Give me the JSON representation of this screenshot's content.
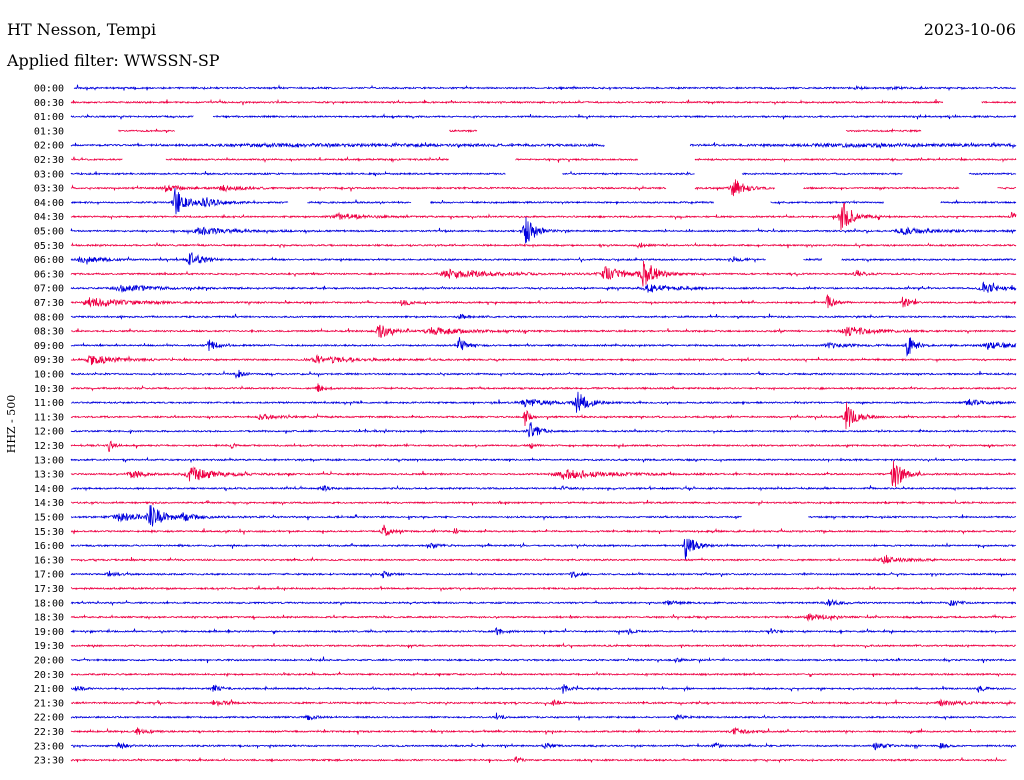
{
  "header": {
    "station": "HT Nesson, Tempi",
    "date": "2023-10-06",
    "filter": "Applied filter: WWSSN-SP"
  },
  "channel_label": "HHZ - 500",
  "colors": {
    "trace_a": "#0000dd",
    "trace_b": "#ee0044",
    "background": "#ffffff",
    "text": "#000000"
  },
  "chart_data": {
    "type": "line",
    "subtype": "helicorder",
    "title": "HT Nesson, Tempi",
    "subtitle": "Applied filter: WWSSN-SP",
    "date": "2023-10-06",
    "ylabel": "HHZ - 500",
    "xlabel": "",
    "row_minutes": 30,
    "trace_colors": [
      "#0000dd",
      "#ee0044"
    ],
    "rows": [
      {
        "label": "00:00",
        "gaps": [
          [
            0.0,
            0.003
          ]
        ],
        "events": [
          [
            0.83,
            1.2,
            0.012
          ],
          [
            0.865,
            1.3,
            0.012
          ]
        ]
      },
      {
        "label": "00:30",
        "gaps": [
          [
            0.923,
            0.963
          ]
        ],
        "events": []
      },
      {
        "label": "01:00",
        "gaps": [
          [
            0.13,
            0.15
          ]
        ],
        "events": []
      },
      {
        "label": "01:30",
        "gaps": [
          [
            0.0,
            0.05
          ],
          [
            0.11,
            0.4
          ],
          [
            0.43,
            0.82
          ],
          [
            0.9,
            1.0
          ]
        ],
        "events": []
      },
      {
        "label": "02:00",
        "gaps": [
          [
            0.565,
            0.655
          ]
        ],
        "events": [
          [
            0.2,
            1.2,
            0.35
          ],
          [
            0.8,
            1.3,
            0.25
          ]
        ]
      },
      {
        "label": "02:30",
        "gaps": [
          [
            0.055,
            0.1
          ],
          [
            0.4,
            0.47
          ],
          [
            0.6,
            0.66
          ]
        ],
        "events": []
      },
      {
        "label": "03:00",
        "gaps": [
          [
            0.46,
            0.52
          ],
          [
            0.66,
            0.71
          ],
          [
            0.88,
            0.95
          ]
        ],
        "events": [
          [
            0.68,
            2.0,
            0.006
          ]
        ]
      },
      {
        "label": "03:30",
        "gaps": [
          [
            0.63,
            0.66
          ],
          [
            0.745,
            0.775
          ],
          [
            0.94,
            0.98
          ]
        ],
        "events": [
          [
            0.7,
            11.0,
            0.013
          ],
          [
            0.1,
            3.0,
            0.02
          ],
          [
            0.16,
            3.5,
            0.02
          ]
        ]
      },
      {
        "label": "04:00",
        "gaps": [
          [
            0.23,
            0.25
          ],
          [
            0.36,
            0.38
          ],
          [
            0.68,
            0.74
          ],
          [
            0.86,
            0.92
          ]
        ],
        "events": [
          [
            0.11,
            16.0,
            0.012
          ],
          [
            0.14,
            5.0,
            0.02
          ]
        ]
      },
      {
        "label": "04:30",
        "gaps": [],
        "events": [
          [
            0.815,
            19.0,
            0.012
          ],
          [
            0.28,
            3.5,
            0.03
          ],
          [
            0.995,
            6.0,
            0.005
          ]
        ]
      },
      {
        "label": "05:00",
        "gaps": [],
        "events": [
          [
            0.48,
            17.0,
            0.012
          ],
          [
            0.135,
            3.5,
            0.04
          ],
          [
            0.88,
            3.0,
            0.04
          ]
        ]
      },
      {
        "label": "05:30",
        "gaps": [],
        "events": [
          [
            0.6,
            3.0,
            0.01
          ]
        ]
      },
      {
        "label": "06:00",
        "gaps": [
          [
            0.735,
            0.775
          ],
          [
            0.795,
            0.815
          ]
        ],
        "events": [
          [
            0.125,
            8.0,
            0.015
          ],
          [
            0.01,
            4.0,
            0.02
          ],
          [
            0.7,
            3.0,
            0.01
          ]
        ]
      },
      {
        "label": "06:30",
        "gaps": [],
        "events": [
          [
            0.605,
            16.0,
            0.013
          ],
          [
            0.565,
            7.0,
            0.025
          ],
          [
            0.4,
            4.0,
            0.06
          ],
          [
            0.83,
            4.0,
            0.01
          ]
        ]
      },
      {
        "label": "07:00",
        "gaps": [],
        "events": [
          [
            0.05,
            3.5,
            0.04
          ],
          [
            0.965,
            6.0,
            0.02
          ],
          [
            0.61,
            4.0,
            0.03
          ]
        ]
      },
      {
        "label": "07:30",
        "gaps": [],
        "events": [
          [
            0.02,
            5.5,
            0.04
          ],
          [
            0.8,
            8.0,
            0.008
          ],
          [
            0.88,
            7.0,
            0.008
          ],
          [
            0.35,
            4.0,
            0.01
          ]
        ]
      },
      {
        "label": "08:00",
        "gaps": [],
        "events": [
          [
            0.41,
            3.0,
            0.01
          ]
        ]
      },
      {
        "label": "08:30",
        "gaps": [],
        "events": [
          [
            0.325,
            11.0,
            0.01
          ],
          [
            0.38,
            4.0,
            0.04
          ],
          [
            0.82,
            5.0,
            0.03
          ]
        ]
      },
      {
        "label": "09:00",
        "gaps": [],
        "events": [
          [
            0.885,
            12.0,
            0.008
          ],
          [
            0.41,
            9.0,
            0.008
          ],
          [
            0.145,
            6.0,
            0.01
          ],
          [
            0.97,
            4.0,
            0.03
          ],
          [
            0.8,
            3.5,
            0.02
          ]
        ]
      },
      {
        "label": "09:30",
        "gaps": [],
        "events": [
          [
            0.02,
            5.0,
            0.03
          ],
          [
            0.26,
            4.0,
            0.04
          ]
        ]
      },
      {
        "label": "10:00",
        "gaps": [],
        "events": [
          [
            0.175,
            6.0,
            0.006
          ]
        ]
      },
      {
        "label": "10:30",
        "gaps": [],
        "events": [
          [
            0.26,
            6.0,
            0.006
          ]
        ]
      },
      {
        "label": "11:00",
        "gaps": [],
        "events": [
          [
            0.535,
            12.0,
            0.012
          ],
          [
            0.48,
            4.0,
            0.03
          ],
          [
            0.95,
            3.0,
            0.02
          ]
        ]
      },
      {
        "label": "11:30",
        "gaps": [],
        "events": [
          [
            0.82,
            15.0,
            0.012
          ],
          [
            0.48,
            10.0,
            0.005
          ],
          [
            0.2,
            3.0,
            0.02
          ]
        ]
      },
      {
        "label": "12:00",
        "gaps": [],
        "events": [
          [
            0.485,
            11.0,
            0.01
          ]
        ]
      },
      {
        "label": "12:30",
        "gaps": [],
        "events": [
          [
            0.04,
            6.0,
            0.006
          ],
          [
            0.485,
            5.0,
            0.004
          ],
          [
            0.17,
            4.0,
            0.003
          ]
        ]
      },
      {
        "label": "13:00",
        "gaps": [],
        "events": []
      },
      {
        "label": "13:30",
        "gaps": [],
        "events": [
          [
            0.87,
            22.0,
            0.01
          ],
          [
            0.125,
            8.0,
            0.03
          ],
          [
            0.063,
            5.0,
            0.015
          ],
          [
            0.52,
            5.0,
            0.05
          ]
        ]
      },
      {
        "label": "14:00",
        "gaps": [],
        "events": [
          [
            0.265,
            4.5,
            0.006
          ],
          [
            0.52,
            3.0,
            0.006
          ]
        ]
      },
      {
        "label": "14:30",
        "gaps": [],
        "events": []
      },
      {
        "label": "15:00",
        "gaps": [
          [
            0.71,
            0.78
          ]
        ],
        "events": [
          [
            0.084,
            13.0,
            0.013
          ],
          [
            0.05,
            4.0,
            0.04
          ],
          [
            0.117,
            4.0,
            0.015
          ]
        ]
      },
      {
        "label": "15:30",
        "gaps": [],
        "events": [
          [
            0.33,
            7.0,
            0.008
          ],
          [
            0.405,
            6.0,
            0.004
          ]
        ]
      },
      {
        "label": "16:00",
        "gaps": [],
        "events": [
          [
            0.65,
            14.0,
            0.01
          ],
          [
            0.38,
            3.0,
            0.01
          ]
        ]
      },
      {
        "label": "16:30",
        "gaps": [],
        "events": [
          [
            0.86,
            3.0,
            0.03
          ]
        ]
      },
      {
        "label": "17:00",
        "gaps": [],
        "events": [
          [
            0.53,
            4.0,
            0.008
          ],
          [
            0.33,
            3.0,
            0.008
          ],
          [
            0.04,
            3.0,
            0.01
          ]
        ]
      },
      {
        "label": "17:30",
        "gaps": [],
        "events": []
      },
      {
        "label": "18:00",
        "gaps": [],
        "events": [
          [
            0.8,
            3.5,
            0.015
          ],
          [
            0.93,
            3.5,
            0.008
          ],
          [
            0.63,
            3.0,
            0.01
          ]
        ]
      },
      {
        "label": "18:30",
        "gaps": [],
        "events": [
          [
            0.78,
            3.5,
            0.02
          ]
        ]
      },
      {
        "label": "19:00",
        "gaps": [],
        "events": [
          [
            0.45,
            3.5,
            0.01
          ],
          [
            0.59,
            3.0,
            0.006
          ],
          [
            0.74,
            3.0,
            0.006
          ]
        ]
      },
      {
        "label": "19:30",
        "gaps": [],
        "events": []
      },
      {
        "label": "20:00",
        "gaps": [],
        "events": [
          [
            0.64,
            2.5,
            0.005
          ]
        ]
      },
      {
        "label": "20:30",
        "gaps": [],
        "events": []
      },
      {
        "label": "21:00",
        "gaps": [],
        "events": [
          [
            0.52,
            5.0,
            0.008
          ],
          [
            0.96,
            3.5,
            0.008
          ],
          [
            0.15,
            3.5,
            0.01
          ],
          [
            0.005,
            3.0,
            0.008
          ]
        ]
      },
      {
        "label": "21:30",
        "gaps": [],
        "events": [
          [
            0.92,
            3.5,
            0.02
          ],
          [
            0.51,
            3.0,
            0.01
          ],
          [
            0.15,
            3.0,
            0.015
          ]
        ]
      },
      {
        "label": "22:00",
        "gaps": [],
        "events": [
          [
            0.25,
            3.5,
            0.008
          ],
          [
            0.45,
            3.0,
            0.008
          ],
          [
            0.64,
            3.0,
            0.008
          ]
        ]
      },
      {
        "label": "22:30",
        "gaps": [],
        "events": [
          [
            0.7,
            3.5,
            0.015
          ],
          [
            0.07,
            3.0,
            0.015
          ]
        ]
      },
      {
        "label": "23:00",
        "gaps": [],
        "events": [
          [
            0.85,
            4.0,
            0.012
          ],
          [
            0.5,
            3.5,
            0.008
          ],
          [
            0.05,
            3.0,
            0.01
          ],
          [
            0.68,
            3.0,
            0.008
          ],
          [
            0.92,
            3.0,
            0.008
          ]
        ]
      },
      {
        "label": "23:30",
        "gaps": [
          [
            0.99,
            1.0
          ]
        ],
        "events": [
          [
            0.47,
            3.5,
            0.008
          ]
        ]
      }
    ]
  }
}
